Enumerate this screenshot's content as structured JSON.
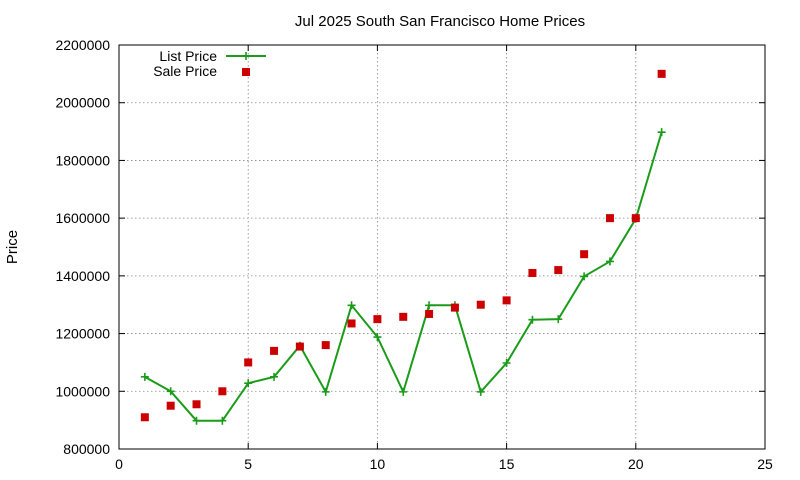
{
  "chart_data": {
    "type": "line",
    "title": "Jul 2025 South San Francisco Home Prices",
    "xlabel": "",
    "ylabel": "Price",
    "xlim": [
      0,
      25
    ],
    "ylim": [
      800000,
      2200000
    ],
    "xticks": [
      0,
      5,
      10,
      15,
      20,
      25
    ],
    "yticks": [
      800000,
      1000000,
      1200000,
      1400000,
      1600000,
      1800000,
      2000000,
      2200000
    ],
    "grid": true,
    "legend_position": "top-left",
    "series": [
      {
        "name": "List Price",
        "style": "line-points",
        "color": "#1a9c1a",
        "x": [
          1,
          2,
          3,
          4,
          5,
          6,
          7,
          8,
          9,
          10,
          11,
          12,
          13,
          14,
          15,
          16,
          17,
          18,
          19,
          20,
          21
        ],
        "values": [
          1050000,
          1000000,
          898000,
          898000,
          1028000,
          1050000,
          1158000,
          998000,
          1298000,
          1188000,
          998000,
          1298000,
          1298000,
          998000,
          1098000,
          1248000,
          1250000,
          1398000,
          1450000,
          1598000,
          1898000
        ]
      },
      {
        "name": "Sale Price",
        "style": "points",
        "color": "#cc0000",
        "x": [
          1,
          2,
          3,
          4,
          5,
          6,
          7,
          8,
          9,
          10,
          11,
          12,
          13,
          14,
          15,
          16,
          17,
          18,
          19,
          20,
          21
        ],
        "values": [
          910000,
          950000,
          955000,
          1000000,
          1100000,
          1140000,
          1155000,
          1160000,
          1235000,
          1250000,
          1258000,
          1268000,
          1290000,
          1300000,
          1315000,
          1410000,
          1420000,
          1475000,
          1600000,
          1600000,
          2100000
        ]
      }
    ]
  }
}
